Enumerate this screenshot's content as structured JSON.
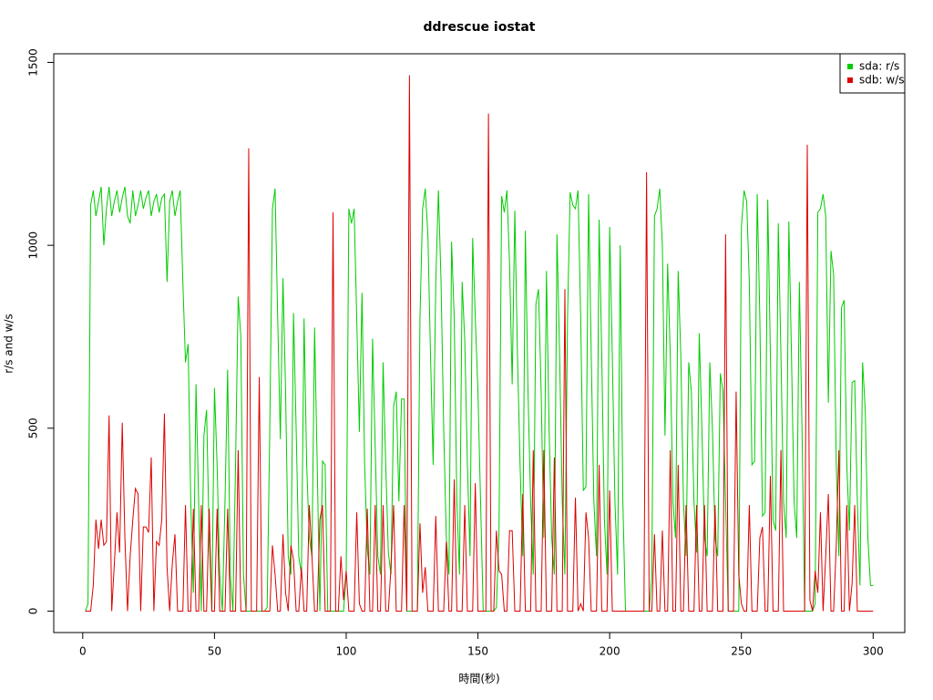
{
  "chart_data": {
    "type": "line",
    "title": "ddrescue iostat",
    "x_label": "時間(秒)",
    "y_label": "r/s and w/s",
    "xlim": [
      -11,
      312
    ],
    "ylim": [
      -58.6,
      1523.6
    ],
    "xticks": [
      0,
      50,
      100,
      150,
      200,
      250,
      300
    ],
    "yticks": [
      0,
      500,
      1000,
      1500
    ],
    "legend": "upper right",
    "x": [
      1,
      2,
      3,
      4,
      5,
      6,
      7,
      8,
      9,
      10,
      11,
      12,
      13,
      14,
      15,
      16,
      17,
      18,
      19,
      20,
      21,
      22,
      23,
      24,
      25,
      26,
      27,
      28,
      29,
      30,
      31,
      32,
      33,
      34,
      35,
      36,
      37,
      38,
      39,
      40,
      41,
      42,
      43,
      44,
      45,
      46,
      47,
      48,
      49,
      50,
      51,
      52,
      53,
      54,
      55,
      56,
      57,
      58,
      59,
      60,
      61,
      62,
      63,
      64,
      65,
      66,
      67,
      68,
      69,
      70,
      71,
      72,
      73,
      74,
      75,
      76,
      77,
      78,
      79,
      80,
      81,
      82,
      83,
      84,
      85,
      86,
      87,
      88,
      89,
      90,
      91,
      92,
      93,
      94,
      95,
      96,
      97,
      98,
      99,
      100,
      101,
      102,
      103,
      104,
      105,
      106,
      107,
      108,
      109,
      110,
      111,
      112,
      113,
      114,
      115,
      116,
      117,
      118,
      119,
      120,
      121,
      122,
      123,
      124,
      125,
      126,
      127,
      128,
      129,
      130,
      131,
      132,
      133,
      134,
      135,
      136,
      137,
      138,
      139,
      140,
      141,
      142,
      143,
      144,
      145,
      146,
      147,
      148,
      149,
      150,
      151,
      152,
      153,
      154,
      155,
      156,
      157,
      158,
      159,
      160,
      161,
      162,
      163,
      164,
      165,
      166,
      167,
      168,
      169,
      170,
      171,
      172,
      173,
      174,
      175,
      176,
      177,
      178,
      179,
      180,
      181,
      182,
      183,
      184,
      185,
      186,
      187,
      188,
      189,
      190,
      191,
      192,
      193,
      194,
      195,
      196,
      197,
      198,
      199,
      200,
      201,
      202,
      203,
      204,
      205,
      206,
      207,
      208,
      209,
      210,
      211,
      212,
      213,
      214,
      215,
      216,
      217,
      218,
      219,
      220,
      221,
      222,
      223,
      224,
      225,
      226,
      227,
      228,
      229,
      230,
      231,
      232,
      233,
      234,
      235,
      236,
      237,
      238,
      239,
      240,
      241,
      242,
      243,
      244,
      245,
      246,
      247,
      248,
      249,
      250,
      251,
      252,
      253,
      254,
      255,
      256,
      257,
      258,
      259,
      260,
      261,
      262,
      263,
      264,
      265,
      266,
      267,
      268,
      269,
      270,
      271,
      272,
      273,
      274,
      275,
      276,
      277,
      278,
      279,
      280,
      281,
      282,
      283,
      284,
      285,
      286,
      287,
      288,
      289,
      290,
      291,
      292,
      293,
      294,
      295,
      296,
      297,
      298,
      299,
      300
    ],
    "series": [
      {
        "name": "sda: r/s",
        "color": "#00cc00",
        "values": [
          0,
          20,
          1110,
          1150,
          1080,
          1120,
          1160,
          1000,
          1100,
          1160,
          1080,
          1120,
          1150,
          1090,
          1130,
          1160,
          1080,
          1060,
          1150,
          1080,
          1110,
          1150,
          1100,
          1130,
          1150,
          1080,
          1120,
          1140,
          1090,
          1130,
          1140,
          900,
          1120,
          1150,
          1080,
          1120,
          1150,
          900,
          680,
          730,
          300,
          50,
          620,
          300,
          0,
          480,
          550,
          200,
          0,
          610,
          400,
          100,
          0,
          300,
          660,
          100,
          0,
          400,
          860,
          750,
          100,
          0,
          0,
          0,
          0,
          0,
          0,
          0,
          0,
          10,
          500,
          1100,
          1155,
          800,
          470,
          910,
          600,
          150,
          100,
          815,
          500,
          150,
          100,
          800,
          400,
          200,
          150,
          775,
          400,
          0,
          410,
          400,
          0,
          0,
          0,
          0,
          0,
          0,
          0,
          100,
          1100,
          1060,
          1100,
          800,
          490,
          870,
          400,
          170,
          100,
          745,
          450,
          150,
          100,
          680,
          400,
          160,
          100,
          560,
          600,
          300,
          580,
          580,
          0,
          0,
          0,
          0,
          0,
          800,
          1100,
          1155,
          1030,
          700,
          400,
          900,
          1150,
          900,
          500,
          200,
          100,
          1010,
          800,
          300,
          100,
          900,
          740,
          400,
          150,
          1020,
          800,
          600,
          300,
          0,
          0,
          0,
          0,
          0,
          10,
          220,
          1135,
          1090,
          1150,
          950,
          620,
          1095,
          700,
          400,
          150,
          1040,
          600,
          300,
          100,
          840,
          880,
          600,
          200,
          930,
          500,
          200,
          100,
          1030,
          700,
          300,
          100,
          800,
          1145,
          1110,
          1100,
          1150,
          800,
          330,
          340,
          1140,
          700,
          300,
          150,
          1070,
          700,
          250,
          100,
          1050,
          700,
          300,
          100,
          1000,
          300,
          0,
          0,
          0,
          0,
          0,
          0,
          0,
          0,
          0,
          0,
          100,
          1080,
          1100,
          1155,
          1000,
          480,
          950,
          700,
          300,
          200,
          930,
          700,
          300,
          150,
          680,
          600,
          300,
          160,
          760,
          500,
          200,
          150,
          680,
          500,
          200,
          150,
          650,
          600,
          300,
          0,
          0,
          0,
          0,
          0,
          1050,
          1150,
          1120,
          900,
          400,
          410,
          1140,
          800,
          260,
          270,
          1125,
          700,
          250,
          220,
          1060,
          700,
          300,
          200,
          1065,
          700,
          300,
          200,
          900,
          500,
          0,
          0,
          0,
          0,
          20,
          1090,
          1100,
          1140,
          1080,
          570,
          985,
          920,
          400,
          150,
          830,
          850,
          400,
          220,
          625,
          630,
          300,
          70,
          680,
          550,
          200,
          70,
          70
        ]
      },
      {
        "name": "sdb: w/s",
        "color": "#dd0000",
        "values": [
          0,
          0,
          0,
          70,
          250,
          170,
          250,
          180,
          190,
          535,
          0,
          130,
          270,
          160,
          515,
          200,
          0,
          150,
          250,
          335,
          320,
          0,
          230,
          230,
          215,
          420,
          0,
          190,
          180,
          250,
          540,
          120,
          0,
          130,
          210,
          0,
          0,
          0,
          290,
          0,
          0,
          280,
          0,
          0,
          290,
          0,
          0,
          280,
          0,
          0,
          280,
          0,
          0,
          0,
          280,
          0,
          0,
          0,
          440,
          0,
          0,
          0,
          1265,
          0,
          0,
          0,
          640,
          0,
          0,
          0,
          0,
          180,
          100,
          0,
          0,
          210,
          50,
          0,
          180,
          140,
          0,
          0,
          120,
          0,
          0,
          290,
          150,
          0,
          0,
          250,
          290,
          0,
          0,
          0,
          1090,
          0,
          0,
          150,
          30,
          110,
          0,
          0,
          0,
          270,
          20,
          0,
          0,
          280,
          0,
          0,
          290,
          0,
          0,
          290,
          0,
          0,
          120,
          290,
          0,
          0,
          0,
          290,
          0,
          1465,
          0,
          0,
          0,
          240,
          50,
          120,
          0,
          0,
          0,
          260,
          0,
          0,
          0,
          190,
          0,
          0,
          360,
          0,
          0,
          0,
          290,
          0,
          0,
          0,
          350,
          0,
          0,
          0,
          0,
          1360,
          0,
          0,
          220,
          110,
          100,
          0,
          0,
          220,
          220,
          0,
          0,
          0,
          320,
          0,
          0,
          0,
          440,
          0,
          0,
          0,
          440,
          0,
          0,
          0,
          420,
          0,
          0,
          0,
          880,
          0,
          0,
          0,
          310,
          0,
          20,
          0,
          270,
          200,
          0,
          0,
          0,
          400,
          0,
          0,
          0,
          330,
          0,
          0,
          0,
          0,
          0,
          0,
          0,
          0,
          0,
          0,
          0,
          0,
          0,
          1200,
          0,
          0,
          210,
          0,
          0,
          220,
          0,
          0,
          440,
          0,
          0,
          400,
          0,
          0,
          290,
          0,
          0,
          0,
          290,
          0,
          0,
          290,
          0,
          0,
          0,
          290,
          0,
          0,
          0,
          1030,
          0,
          0,
          0,
          600,
          100,
          20,
          0,
          0,
          290,
          0,
          0,
          0,
          200,
          230,
          0,
          0,
          370,
          0,
          0,
          0,
          440,
          0,
          0,
          0,
          0,
          0,
          0,
          0,
          0,
          0,
          1275,
          30,
          0,
          110,
          50,
          270,
          0,
          150,
          320,
          0,
          0,
          180,
          440,
          0,
          0,
          290,
          0,
          75,
          290,
          0,
          0,
          0,
          0,
          0,
          0,
          0
        ]
      }
    ]
  }
}
